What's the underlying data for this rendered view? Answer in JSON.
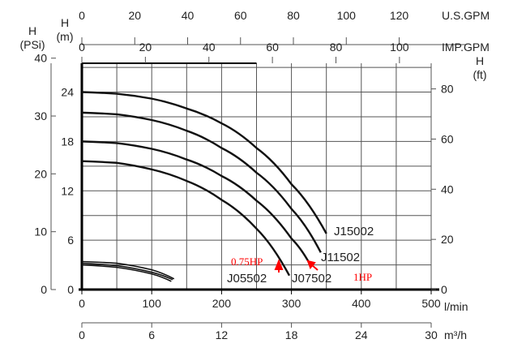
{
  "chart_data": {
    "type": "line",
    "title": "",
    "xlabel": "l/min",
    "xlim": [
      0,
      500
    ],
    "ylabel": "H (m)",
    "ylim": [
      0,
      27.5
    ],
    "grid": true,
    "x_ticks": [
      0,
      100,
      200,
      300,
      400,
      500
    ],
    "y_ticks_m": [
      0,
      6,
      12,
      18,
      24
    ],
    "axes": {
      "us_gpm": {
        "label": "U.S.GPM",
        "ticks": [
          0,
          20,
          40,
          60,
          80,
          100,
          120
        ]
      },
      "imp_gpm": {
        "label": "IMP.GPM",
        "ticks": [
          0,
          20,
          40,
          60,
          80,
          100
        ]
      },
      "psi": {
        "label": "H\n(PSi)",
        "ticks": [
          0,
          10,
          20,
          30,
          40
        ]
      },
      "m": {
        "label": "H\n(m)"
      },
      "ft": {
        "label": "H\n(ft)",
        "ticks": [
          0,
          20,
          40,
          60,
          80
        ]
      },
      "m3h": {
        "label": "m³/h",
        "ticks": [
          0,
          6,
          12,
          18,
          24,
          30
        ]
      },
      "lmin": {
        "label": "l/min"
      }
    },
    "series": [
      {
        "name": "J15002",
        "x": [
          0,
          50,
          100,
          150,
          200,
          250,
          300,
          350
        ],
        "y": [
          24,
          23.8,
          23.2,
          22,
          20.2,
          17.2,
          12.8,
          6.8
        ]
      },
      {
        "name": "J11502",
        "x": [
          0,
          50,
          100,
          150,
          200,
          250,
          300,
          342
        ],
        "y": [
          21.5,
          21.3,
          20.6,
          19.3,
          17.2,
          14.2,
          9.8,
          4.5
        ]
      },
      {
        "name": "J07502",
        "x": [
          0,
          50,
          100,
          150,
          200,
          250,
          300,
          327
        ],
        "y": [
          18,
          17.8,
          17.1,
          15.8,
          13.8,
          10.8,
          6.2,
          3
        ]
      },
      {
        "name": "J05502",
        "x": [
          0,
          50,
          100,
          150,
          200,
          250,
          297
        ],
        "y": [
          15.6,
          15.4,
          14.6,
          13.2,
          10.9,
          7.4,
          1.7
        ]
      },
      {
        "name": "",
        "x": [
          0,
          50,
          100,
          132
        ],
        "y": [
          3.4,
          3.2,
          2.4,
          1.3
        ]
      },
      {
        "name": "",
        "x": [
          0,
          50,
          100,
          130
        ],
        "y": [
          3.2,
          2.9,
          2.1,
          1.2
        ]
      },
      {
        "name": "",
        "x": [
          0,
          50,
          100,
          128
        ],
        "y": [
          3.0,
          2.7,
          1.9,
          1.0
        ]
      }
    ],
    "annotations": [
      {
        "text": "0.75HP",
        "target": "J05502",
        "color": "#ff0000"
      },
      {
        "text": "1HP",
        "target": "J07502",
        "color": "#ff0000"
      }
    ]
  }
}
